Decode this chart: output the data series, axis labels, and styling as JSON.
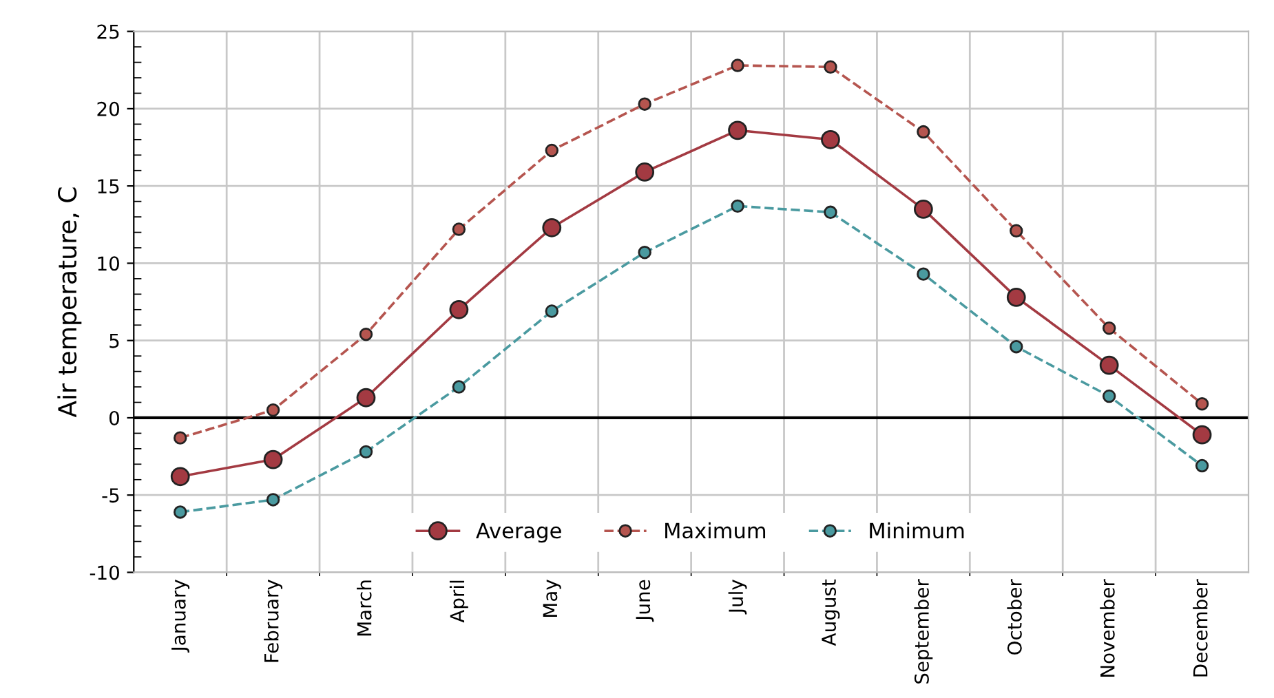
{
  "chart_data": {
    "type": "line",
    "ylabel": "Air temperature, C",
    "categories": [
      "January",
      "February",
      "March",
      "April",
      "May",
      "June",
      "July",
      "August",
      "September",
      "October",
      "November",
      "December"
    ],
    "series": [
      {
        "name": "Average",
        "color": "#a33a42",
        "line_style": "solid",
        "values": [
          -3.8,
          -2.7,
          1.3,
          7.0,
          12.3,
          15.9,
          18.6,
          18.0,
          13.5,
          7.8,
          3.4,
          -1.1
        ]
      },
      {
        "name": "Maximum",
        "color": "#b5554f",
        "line_style": "dashed",
        "values": [
          -1.3,
          0.5,
          5.4,
          12.2,
          17.3,
          20.3,
          22.8,
          22.7,
          18.5,
          12.1,
          5.8,
          0.9
        ]
      },
      {
        "name": "Minimum",
        "color": "#4a9aa0",
        "line_style": "dashed",
        "values": [
          -6.1,
          -5.3,
          -2.2,
          2.0,
          6.9,
          10.7,
          13.7,
          13.3,
          9.3,
          4.6,
          1.4,
          -3.1
        ]
      }
    ],
    "ylim": [
      -10,
      25
    ],
    "yticks": [
      -10,
      -5,
      0,
      5,
      10,
      15,
      20,
      25
    ],
    "ref_lines": [
      {
        "axis": "y",
        "value": 0,
        "color": "#000000"
      }
    ],
    "grid": true,
    "legend": "bottom",
    "marker": "circle"
  }
}
